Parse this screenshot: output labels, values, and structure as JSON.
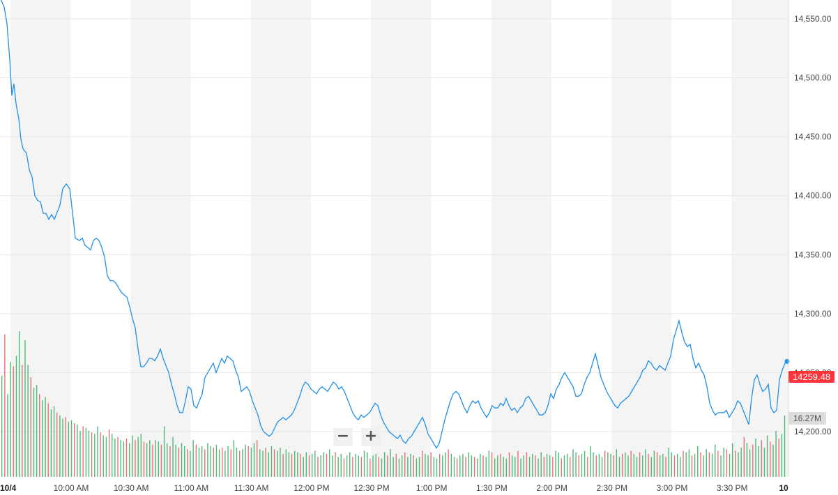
{
  "chart_data": {
    "type": "line",
    "date_label": "10/4",
    "end_label": "10",
    "x_ticks": [
      "10:00 AM",
      "10:30 AM",
      "11:00 AM",
      "11:30 AM",
      "12:00 PM",
      "12:30 PM",
      "1:00 PM",
      "1:30 PM",
      "2:00 PM",
      "2:30 PM",
      "3:00 PM",
      "3:30 PM"
    ],
    "y_ticks": [
      "14,550.00",
      "14,500.00",
      "14,450.00",
      "14,400.00",
      "14,350.00",
      "14,300.00",
      "14,250.00",
      "14,200.00"
    ],
    "ylim": [
      14180,
      14570
    ],
    "grid": true,
    "last_price": "14259.48",
    "last_volume": "16.27M",
    "price_series": {
      "points": [
        [
          0,
          14568
        ],
        [
          6,
          14560
        ],
        [
          10,
          14546
        ],
        [
          14,
          14515
        ],
        [
          17,
          14485
        ],
        [
          20,
          14495
        ],
        [
          23,
          14478
        ],
        [
          27,
          14465
        ],
        [
          30,
          14448
        ],
        [
          33,
          14440
        ],
        [
          38,
          14436
        ],
        [
          42,
          14422
        ],
        [
          46,
          14416
        ],
        [
          50,
          14400
        ],
        [
          54,
          14396
        ],
        [
          58,
          14395
        ],
        [
          62,
          14385
        ],
        [
          66,
          14385
        ],
        [
          70,
          14380
        ],
        [
          74,
          14384
        ],
        [
          78,
          14380
        ],
        [
          82,
          14386
        ],
        [
          86,
          14392
        ],
        [
          90,
          14406
        ],
        [
          95,
          14410
        ],
        [
          100,
          14406
        ],
        [
          104,
          14386
        ],
        [
          108,
          14364
        ],
        [
          114,
          14362
        ],
        [
          118,
          14364
        ],
        [
          122,
          14358
        ],
        [
          126,
          14356
        ],
        [
          130,
          14354
        ],
        [
          134,
          14362
        ],
        [
          138,
          14364
        ],
        [
          142,
          14362
        ],
        [
          146,
          14356
        ],
        [
          150,
          14348
        ],
        [
          154,
          14332
        ],
        [
          158,
          14328
        ],
        [
          162,
          14328
        ],
        [
          166,
          14326
        ],
        [
          170,
          14322
        ],
        [
          174,
          14318
        ],
        [
          178,
          14316
        ],
        [
          182,
          14314
        ],
        [
          186,
          14306
        ],
        [
          190,
          14296
        ],
        [
          194,
          14288
        ],
        [
          198,
          14270
        ],
        [
          202,
          14255
        ],
        [
          206,
          14255
        ],
        [
          210,
          14258
        ],
        [
          214,
          14262
        ],
        [
          218,
          14262
        ],
        [
          222,
          14260
        ],
        [
          226,
          14264
        ],
        [
          230,
          14270
        ],
        [
          234,
          14262
        ],
        [
          238,
          14256
        ],
        [
          242,
          14250
        ],
        [
          246,
          14240
        ],
        [
          250,
          14232
        ],
        [
          254,
          14222
        ],
        [
          258,
          14216
        ],
        [
          262,
          14216
        ],
        [
          266,
          14226
        ],
        [
          270,
          14238
        ],
        [
          274,
          14236
        ],
        [
          278,
          14222
        ],
        [
          282,
          14220
        ],
        [
          286,
          14226
        ],
        [
          290,
          14232
        ],
        [
          294,
          14246
        ],
        [
          298,
          14250
        ],
        [
          302,
          14254
        ],
        [
          306,
          14258
        ],
        [
          310,
          14250
        ],
        [
          314,
          14256
        ],
        [
          318,
          14262
        ],
        [
          322,
          14258
        ],
        [
          326,
          14264
        ],
        [
          330,
          14262
        ],
        [
          334,
          14260
        ],
        [
          338,
          14252
        ],
        [
          342,
          14246
        ],
        [
          346,
          14234
        ],
        [
          350,
          14236
        ],
        [
          354,
          14238
        ],
        [
          358,
          14234
        ],
        [
          362,
          14226
        ],
        [
          366,
          14220
        ],
        [
          370,
          14214
        ],
        [
          374,
          14205
        ],
        [
          378,
          14200
        ],
        [
          382,
          14198
        ],
        [
          386,
          14196
        ],
        [
          390,
          14198
        ],
        [
          394,
          14203
        ],
        [
          398,
          14208
        ],
        [
          402,
          14210
        ],
        [
          406,
          14212
        ],
        [
          410,
          14210
        ],
        [
          414,
          14212
        ],
        [
          418,
          14214
        ],
        [
          422,
          14218
        ],
        [
          426,
          14224
        ],
        [
          430,
          14230
        ],
        [
          434,
          14238
        ],
        [
          438,
          14242
        ],
        [
          442,
          14240
        ],
        [
          446,
          14236
        ],
        [
          450,
          14234
        ],
        [
          454,
          14232
        ],
        [
          458,
          14236
        ],
        [
          462,
          14238
        ],
        [
          466,
          14236
        ],
        [
          470,
          14234
        ],
        [
          474,
          14238
        ],
        [
          478,
          14242
        ],
        [
          482,
          14240
        ],
        [
          486,
          14236
        ],
        [
          490,
          14238
        ],
        [
          494,
          14234
        ],
        [
          498,
          14228
        ],
        [
          502,
          14222
        ],
        [
          506,
          14216
        ],
        [
          510,
          14212
        ],
        [
          514,
          14210
        ],
        [
          518,
          14214
        ],
        [
          522,
          14212
        ],
        [
          526,
          14214
        ],
        [
          530,
          14216
        ],
        [
          534,
          14220
        ],
        [
          538,
          14224
        ],
        [
          542,
          14222
        ],
        [
          546,
          14214
        ],
        [
          550,
          14208
        ],
        [
          554,
          14204
        ],
        [
          558,
          14200
        ],
        [
          562,
          14198
        ],
        [
          566,
          14196
        ],
        [
          570,
          14194
        ],
        [
          574,
          14197
        ],
        [
          578,
          14192
        ],
        [
          582,
          14190
        ],
        [
          586,
          14194
        ],
        [
          590,
          14196
        ],
        [
          594,
          14200
        ],
        [
          598,
          14204
        ],
        [
          602,
          14208
        ],
        [
          606,
          14212
        ],
        [
          610,
          14206
        ],
        [
          614,
          14198
        ],
        [
          618,
          14194
        ],
        [
          622,
          14190
        ],
        [
          626,
          14186
        ],
        [
          630,
          14190
        ],
        [
          634,
          14200
        ],
        [
          638,
          14210
        ],
        [
          642,
          14218
        ],
        [
          646,
          14226
        ],
        [
          650,
          14232
        ],
        [
          654,
          14234
        ],
        [
          658,
          14232
        ],
        [
          662,
          14226
        ],
        [
          666,
          14220
        ],
        [
          670,
          14216
        ],
        [
          674,
          14222
        ],
        [
          678,
          14226
        ],
        [
          682,
          14224
        ],
        [
          686,
          14226
        ],
        [
          690,
          14220
        ],
        [
          694,
          14216
        ],
        [
          698,
          14212
        ],
        [
          702,
          14216
        ],
        [
          706,
          14222
        ],
        [
          710,
          14220
        ],
        [
          714,
          14220
        ],
        [
          718,
          14224
        ],
        [
          722,
          14222
        ],
        [
          726,
          14228
        ],
        [
          730,
          14222
        ],
        [
          734,
          14218
        ],
        [
          738,
          14220
        ],
        [
          742,
          14216
        ],
        [
          746,
          14220
        ],
        [
          750,
          14222
        ],
        [
          754,
          14228
        ],
        [
          758,
          14230
        ],
        [
          762,
          14226
        ],
        [
          766,
          14222
        ],
        [
          770,
          14218
        ],
        [
          774,
          14214
        ],
        [
          778,
          14214
        ],
        [
          782,
          14216
        ],
        [
          786,
          14222
        ],
        [
          790,
          14232
        ],
        [
          794,
          14228
        ],
        [
          798,
          14236
        ],
        [
          802,
          14240
        ],
        [
          806,
          14246
        ],
        [
          810,
          14250
        ],
        [
          814,
          14246
        ],
        [
          818,
          14242
        ],
        [
          822,
          14238
        ],
        [
          826,
          14230
        ],
        [
          830,
          14230
        ],
        [
          834,
          14232
        ],
        [
          838,
          14240
        ],
        [
          842,
          14246
        ],
        [
          846,
          14250
        ],
        [
          850,
          14258
        ],
        [
          854,
          14266
        ],
        [
          858,
          14256
        ],
        [
          862,
          14246
        ],
        [
          866,
          14240
        ],
        [
          870,
          14234
        ],
        [
          874,
          14230
        ],
        [
          878,
          14226
        ],
        [
          882,
          14222
        ],
        [
          886,
          14220
        ],
        [
          890,
          14224
        ],
        [
          894,
          14226
        ],
        [
          898,
          14228
        ],
        [
          902,
          14230
        ],
        [
          906,
          14234
        ],
        [
          910,
          14238
        ],
        [
          914,
          14242
        ],
        [
          918,
          14246
        ],
        [
          922,
          14252
        ],
        [
          926,
          14254
        ],
        [
          930,
          14260
        ],
        [
          934,
          14258
        ],
        [
          938,
          14254
        ],
        [
          942,
          14252
        ],
        [
          946,
          14256
        ],
        [
          950,
          14254
        ],
        [
          954,
          14252
        ],
        [
          958,
          14258
        ],
        [
          962,
          14264
        ],
        [
          966,
          14278
        ],
        [
          970,
          14286
        ],
        [
          974,
          14294
        ],
        [
          978,
          14284
        ],
        [
          982,
          14276
        ],
        [
          986,
          14272
        ],
        [
          990,
          14274
        ],
        [
          994,
          14262
        ],
        [
          998,
          14254
        ],
        [
          1002,
          14258
        ],
        [
          1006,
          14252
        ],
        [
          1010,
          14248
        ],
        [
          1014,
          14238
        ],
        [
          1018,
          14224
        ],
        [
          1022,
          14218
        ],
        [
          1026,
          14214
        ],
        [
          1030,
          14216
        ],
        [
          1034,
          14216
        ],
        [
          1038,
          14216
        ],
        [
          1042,
          14218
        ],
        [
          1046,
          14212
        ],
        [
          1050,
          14216
        ],
        [
          1054,
          14220
        ],
        [
          1058,
          14226
        ],
        [
          1062,
          14224
        ],
        [
          1066,
          14218
        ],
        [
          1070,
          14212
        ],
        [
          1074,
          14206
        ],
        [
          1078,
          14228
        ],
        [
          1082,
          14244
        ],
        [
          1086,
          14248
        ],
        [
          1090,
          14240
        ],
        [
          1094,
          14234
        ],
        [
          1098,
          14236
        ],
        [
          1102,
          14240
        ],
        [
          1106,
          14220
        ],
        [
          1110,
          14216
        ],
        [
          1114,
          14218
        ],
        [
          1118,
          14244
        ],
        [
          1122,
          14252
        ],
        [
          1126,
          14258
        ],
        [
          1130,
          14259.48
        ]
      ]
    },
    "volume_series": {
      "note_max": 100,
      "values": [
        66,
        93,
        54,
        75,
        72,
        79,
        95,
        73,
        89,
        73,
        65,
        58,
        60,
        54,
        50,
        52,
        48,
        44,
        46,
        42,
        40,
        38,
        39,
        36,
        37,
        35,
        34,
        30,
        33,
        32,
        30,
        29,
        28,
        33,
        29,
        27,
        26,
        31,
        28,
        25,
        26,
        24,
        23,
        25,
        22,
        27,
        24,
        26,
        28,
        23,
        22,
        24,
        21,
        24,
        23,
        21,
        33,
        22,
        20,
        26,
        21,
        19,
        22,
        20,
        18,
        17,
        24,
        21,
        19,
        20,
        18,
        22,
        20,
        19,
        21,
        18,
        19,
        17,
        20,
        18,
        24,
        19,
        17,
        18,
        21,
        20,
        19,
        22,
        24,
        18,
        17,
        19,
        16,
        20,
        18,
        17,
        19,
        15,
        18,
        16,
        15,
        17,
        16,
        15,
        13,
        16,
        14,
        15,
        17,
        13,
        14,
        16,
        15,
        18,
        14,
        16,
        13,
        15,
        12,
        14,
        16,
        13,
        15,
        14,
        13,
        17,
        16,
        12,
        14,
        15,
        13,
        12,
        16,
        14,
        18,
        13,
        15,
        12,
        14,
        16,
        13,
        15,
        14,
        12,
        13,
        17,
        15,
        14,
        16,
        13,
        12,
        15,
        14,
        16,
        18,
        15,
        13,
        12,
        14,
        15,
        13,
        16,
        14,
        13,
        12,
        15,
        14,
        13,
        17,
        16,
        12,
        14,
        15,
        13,
        12,
        16,
        14,
        13,
        17,
        12,
        14,
        16,
        13,
        15,
        14,
        12,
        16,
        13,
        15,
        14,
        13,
        17,
        16,
        12,
        14,
        15,
        13,
        18,
        16,
        14,
        15,
        17,
        13,
        20,
        16,
        14,
        15,
        13,
        17,
        16,
        15,
        14,
        18,
        13,
        15,
        16,
        14,
        17,
        15,
        13,
        16,
        14,
        18,
        15,
        13,
        17,
        16,
        14,
        15,
        13,
        19,
        16,
        14,
        15,
        13,
        17,
        16,
        18,
        14,
        15,
        20,
        16,
        14,
        18,
        16,
        15,
        21,
        17,
        14,
        19,
        18,
        15,
        22,
        17,
        16,
        19,
        26,
        22,
        18,
        21,
        25,
        20,
        24,
        19,
        27,
        23,
        21,
        30,
        25,
        28,
        40
      ]
    }
  },
  "colors": {
    "line": "#1f8fe8",
    "volume_up": "#2fae5e",
    "volume_down": "#e8575c",
    "band": "#f4f4f4",
    "grid": "#e6e6e6",
    "price_tag": "#ff333a"
  },
  "controls": {
    "zoom_out": "−",
    "zoom_in": "+"
  }
}
